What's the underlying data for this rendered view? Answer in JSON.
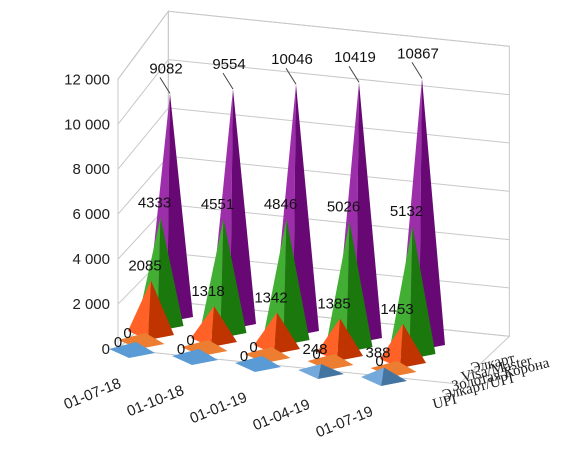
{
  "chart_data": {
    "type": "3d-cone",
    "title": "",
    "xlabel": "",
    "ylabel": "",
    "ylim": [
      0,
      12000
    ],
    "yticks": [
      "0",
      "2 000",
      "4 000",
      "6 000",
      "8 000",
      "10 000",
      "12 000"
    ],
    "grid": true,
    "categories": [
      "01-07-18",
      "01-10-18",
      "01-01-19",
      "01-04-19",
      "01-07-19"
    ],
    "series": [
      {
        "name": "UPI",
        "color": "#5b9bd5",
        "values": [
          0,
          0,
          0,
          248,
          388
        ],
        "labels": [
          "0",
          "0",
          "0",
          "248",
          "388"
        ]
      },
      {
        "name": "Элкарт/UPI",
        "color": "#ed7d31",
        "values": [
          0,
          0,
          0,
          0,
          0
        ],
        "labels": [
          "0",
          "0",
          "0",
          "0",
          "0"
        ]
      },
      {
        "name": "Золотая Корона",
        "color": "#ff4500",
        "values": [
          2085,
          1318,
          1342,
          1385,
          1453
        ],
        "labels": [
          "2085",
          "1318",
          "1342",
          "1385",
          "1453"
        ]
      },
      {
        "name": "Visa/Master",
        "color": "#22a010",
        "values": [
          4333,
          4551,
          4846,
          5026,
          5132
        ],
        "labels": [
          "4333",
          "4551",
          "4846",
          "5026",
          "5132"
        ]
      },
      {
        "name": "Элкарт",
        "color": "#8b0a9a",
        "values": [
          9082,
          9554,
          10046,
          10419,
          10867
        ],
        "labels": [
          "9082",
          "9554",
          "10046",
          "10419",
          "10867"
        ]
      }
    ]
  }
}
